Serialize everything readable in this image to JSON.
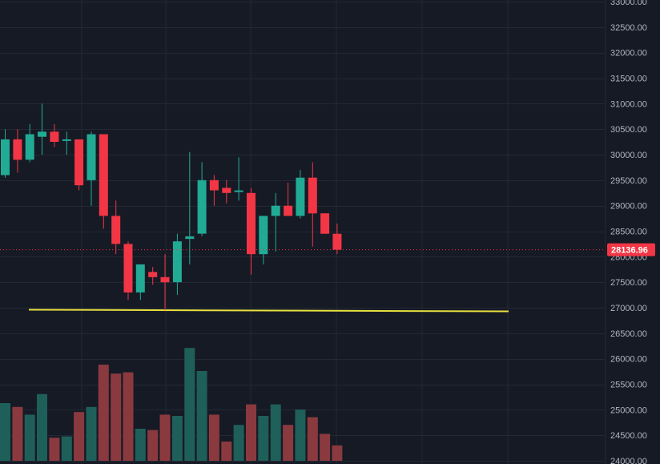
{
  "chart_data": {
    "type": "candlestick",
    "colors": {
      "background": "#161a25",
      "grid": "#232834",
      "up": "#22ab94",
      "down": "#f23645",
      "vol_up": "#1f5f5a",
      "vol_down": "#8a3a3f",
      "hline": "#e8e13f",
      "price_line": "#f23645",
      "axis_text": "#b2b5be"
    },
    "y_axis": {
      "min": 24000,
      "max": 33000,
      "tick_labels": [
        "33000.00",
        "32500.00",
        "32000.00",
        "31500.00",
        "31000.00",
        "30500.00",
        "30000.00",
        "29500.00",
        "29000.00",
        "28500.00",
        "28000.00",
        "27500.00",
        "27000.00",
        "26500.00",
        "26000.00",
        "25500.00",
        "25000.00",
        "24500.00",
        "24000.00"
      ],
      "tick_values": [
        33000,
        32500,
        32000,
        31500,
        31000,
        30500,
        30000,
        29500,
        29000,
        28500,
        28000,
        27500,
        27000,
        26500,
        26000,
        25500,
        25000,
        24500,
        24000
      ]
    },
    "current_price": {
      "value": 28136.96,
      "label": "28136.96"
    },
    "horizontal_line": {
      "value": 26950
    },
    "candles": [
      {
        "o": 29600,
        "h": 30500,
        "l": 29550,
        "c": 30300
      },
      {
        "o": 30300,
        "h": 30500,
        "l": 29650,
        "c": 29900
      },
      {
        "o": 29900,
        "h": 30600,
        "l": 29850,
        "c": 30400
      },
      {
        "o": 30350,
        "h": 31000,
        "l": 30000,
        "c": 30450
      },
      {
        "o": 30450,
        "h": 30600,
        "l": 30150,
        "c": 30250
      },
      {
        "o": 30300,
        "h": 30450,
        "l": 30000,
        "c": 30300
      },
      {
        "o": 30300,
        "h": 30300,
        "l": 29300,
        "c": 29400
      },
      {
        "o": 29500,
        "h": 30450,
        "l": 29000,
        "c": 30400
      },
      {
        "o": 30400,
        "h": 30400,
        "l": 28550,
        "c": 28800
      },
      {
        "o": 28800,
        "h": 29100,
        "l": 28050,
        "c": 28250
      },
      {
        "o": 28250,
        "h": 28300,
        "l": 27150,
        "c": 27300
      },
      {
        "o": 27300,
        "h": 27800,
        "l": 27150,
        "c": 27850
      },
      {
        "o": 27700,
        "h": 27800,
        "l": 27450,
        "c": 27600
      },
      {
        "o": 27600,
        "h": 28050,
        "l": 26950,
        "c": 27500
      },
      {
        "o": 27500,
        "h": 28450,
        "l": 27250,
        "c": 28300
      },
      {
        "o": 28350,
        "h": 30050,
        "l": 27850,
        "c": 28400
      },
      {
        "o": 28450,
        "h": 29850,
        "l": 28400,
        "c": 29500
      },
      {
        "o": 29500,
        "h": 29600,
        "l": 29000,
        "c": 29300
      },
      {
        "o": 29350,
        "h": 29500,
        "l": 29050,
        "c": 29250
      },
      {
        "o": 29300,
        "h": 29950,
        "l": 29100,
        "c": 29300
      },
      {
        "o": 29250,
        "h": 29350,
        "l": 27650,
        "c": 28050
      },
      {
        "o": 28050,
        "h": 28800,
        "l": 27850,
        "c": 28800
      },
      {
        "o": 28800,
        "h": 29250,
        "l": 28100,
        "c": 29000
      },
      {
        "o": 29000,
        "h": 29450,
        "l": 28800,
        "c": 28800
      },
      {
        "o": 28800,
        "h": 29700,
        "l": 28750,
        "c": 29550
      },
      {
        "o": 29550,
        "h": 29850,
        "l": 28200,
        "c": 28850
      },
      {
        "o": 28850,
        "h": 28850,
        "l": 28450,
        "c": 28450
      },
      {
        "o": 28450,
        "h": 28650,
        "l": 28050,
        "c": 28136.96
      }
    ],
    "volume": [
      0.45,
      0.42,
      0.36,
      0.52,
      0.18,
      0.19,
      0.38,
      0.42,
      0.75,
      0.68,
      0.69,
      0.25,
      0.24,
      0.36,
      0.35,
      0.88,
      0.7,
      0.36,
      0.15,
      0.28,
      0.44,
      0.35,
      0.44,
      0.28,
      0.4,
      0.34,
      0.21,
      0.12
    ]
  }
}
